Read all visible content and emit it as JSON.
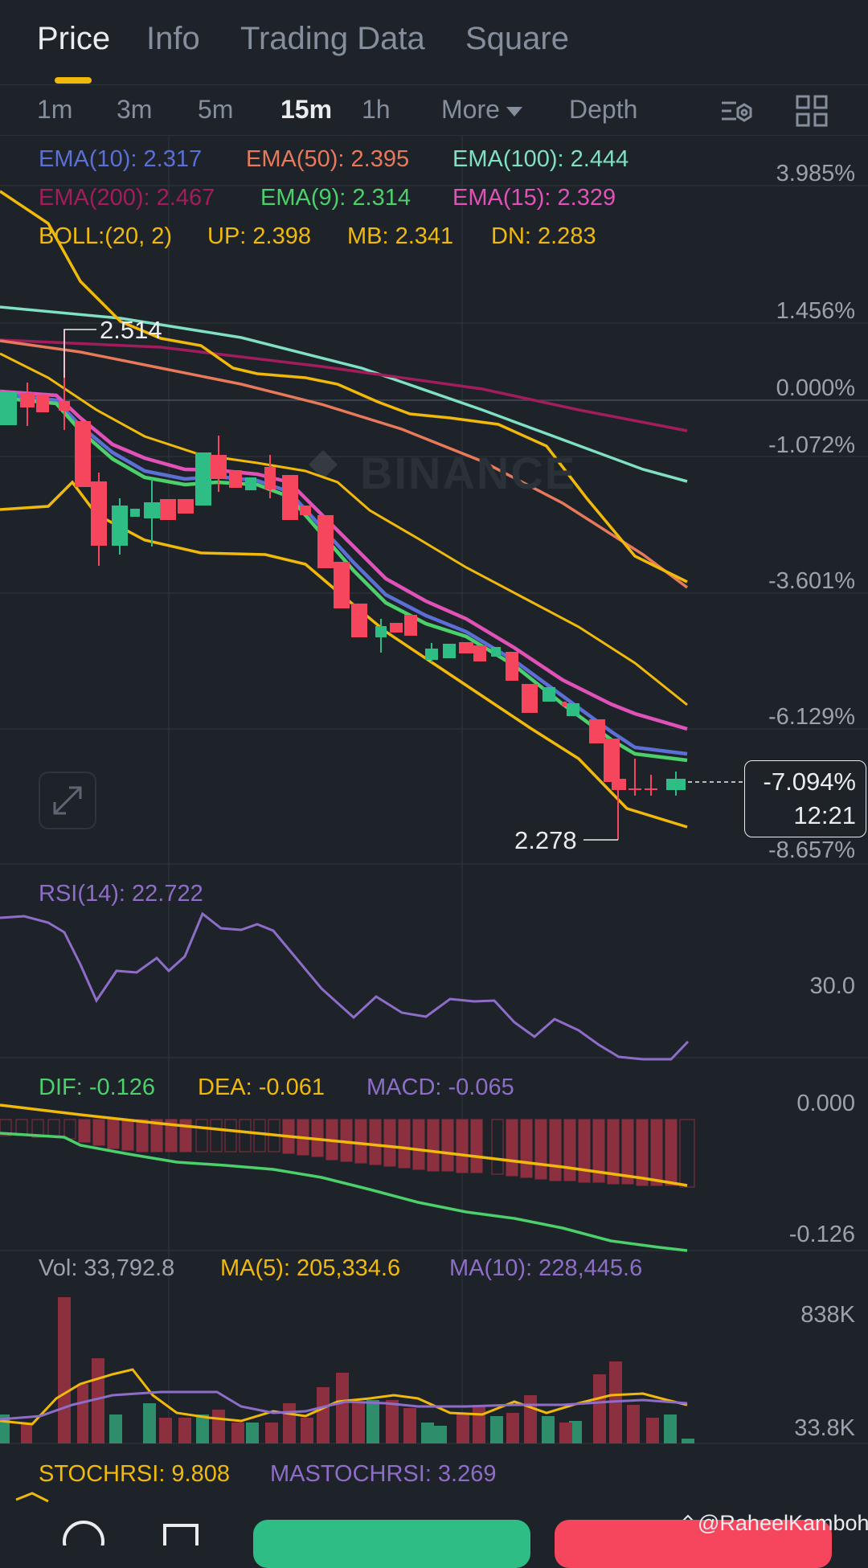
{
  "tabs": {
    "items": [
      {
        "label": "Price",
        "active": true
      },
      {
        "label": "Info"
      },
      {
        "label": "Trading Data"
      },
      {
        "label": "Square"
      }
    ]
  },
  "timeframes": {
    "items": [
      "1m",
      "3m",
      "5m",
      "15m",
      "1h"
    ],
    "active": "15m",
    "more_label": "More",
    "depth_label": "Depth",
    "tool_icons": [
      "chart-settings-icon",
      "layout-grid-icon"
    ]
  },
  "legend": {
    "ema10": "EMA(10): 2.317",
    "ema50": "EMA(50): 2.395",
    "ema100": "EMA(100): 2.444",
    "ema200": "EMA(200): 2.467",
    "ema9": "EMA(9): 2.314",
    "ema15": "EMA(15): 2.329",
    "boll": "BOLL:(20, 2)",
    "up": "UP: 2.398",
    "mb": "MB: 2.341",
    "dn": "DN: 2.283"
  },
  "price_axis": [
    "3.985%",
    "1.456%",
    "0.000%",
    "-1.072%",
    "-3.601%",
    "-6.129%",
    "-8.657%"
  ],
  "markers": {
    "high": "2.514",
    "low": "2.278"
  },
  "current": {
    "pct": "-7.094%",
    "countdown": "12:21"
  },
  "watermark_center": "BINANCE",
  "rsi": {
    "label": "RSI(14): 22.722",
    "axis": "30.0"
  },
  "macd": {
    "dif": "DIF: -0.126",
    "dea": "DEA: -0.061",
    "macd": "MACD: -0.065",
    "axis_top": "0.000",
    "axis_bottom": "-0.126"
  },
  "volume": {
    "vol": "Vol: 33,792.8",
    "ma5": "MA(5): 205,334.6",
    "ma10": "MA(10): 228,445.6",
    "axis_top": "838K",
    "axis_bottom": "33.8K"
  },
  "stoch": {
    "stochrsi": "STOCHRSI: 9.808",
    "mastochrsi": "MASTOCHRSI: 3.269"
  },
  "credit": "@RaheelKamboh",
  "colors": {
    "up": "#2ebd85",
    "down": "#f6465d",
    "accent": "#f0b90b",
    "ema10": "#5b6fd6",
    "ema50": "#e8795a",
    "ema100": "#7fe0c4",
    "ema200": "#a21d5c",
    "ema9": "#4bd06b",
    "ema15": "#e052b8",
    "boll": "#f0b90b",
    "rsi": "#8e6dc9"
  }
}
